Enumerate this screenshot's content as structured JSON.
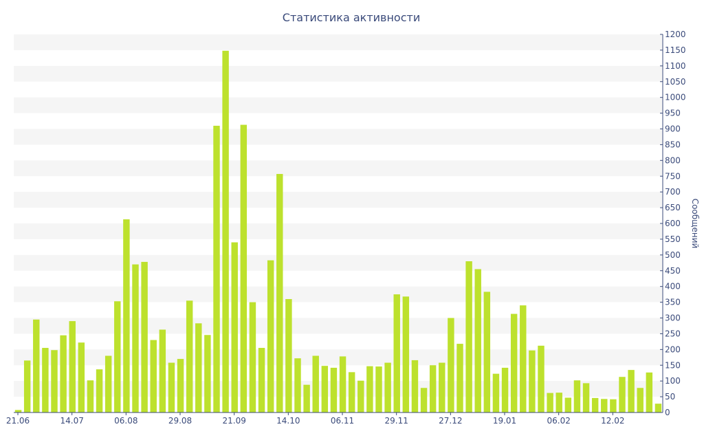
{
  "chart_data": {
    "type": "bar",
    "title": "Статистика активности",
    "ylabel": "Сообщений",
    "xlabel": "",
    "ylim": [
      0,
      1200
    ],
    "y_ticks": [
      0,
      50,
      100,
      150,
      200,
      250,
      300,
      350,
      400,
      450,
      500,
      550,
      600,
      650,
      700,
      750,
      800,
      850,
      900,
      950,
      1000,
      1050,
      1100,
      1150,
      1200
    ],
    "x_tick_labels": [
      {
        "index": 0,
        "label": "21.06"
      },
      {
        "index": 6,
        "label": "14.07"
      },
      {
        "index": 12,
        "label": "06.08"
      },
      {
        "index": 18,
        "label": "29.08"
      },
      {
        "index": 24,
        "label": "21.09"
      },
      {
        "index": 30,
        "label": "14.10"
      },
      {
        "index": 36,
        "label": "06.11"
      },
      {
        "index": 42,
        "label": "29.11"
      },
      {
        "index": 48,
        "label": "27.12"
      },
      {
        "index": 54,
        "label": "19.01"
      },
      {
        "index": 60,
        "label": "06.02"
      },
      {
        "index": 66,
        "label": "12.02"
      }
    ],
    "values": [
      8,
      165,
      295,
      205,
      198,
      245,
      290,
      222,
      102,
      137,
      180,
      353,
      613,
      470,
      478,
      230,
      263,
      158,
      170,
      355,
      283,
      246,
      910,
      1148,
      540,
      913,
      350,
      205,
      483,
      757,
      360,
      172,
      88,
      180,
      148,
      142,
      178,
      128,
      101,
      147,
      146,
      158,
      375,
      368,
      166,
      78,
      150,
      158,
      300,
      218,
      480,
      455,
      383,
      123,
      142,
      313,
      340,
      197,
      212,
      62,
      63,
      47,
      102,
      93,
      46,
      43,
      42,
      113,
      135,
      78,
      127,
      28
    ],
    "grid": true,
    "y_axis_position": "right",
    "legend": "none",
    "colors": {
      "bar": "#bde12d",
      "band": "#f5f5f5",
      "axis": "#3a4a7a"
    }
  }
}
